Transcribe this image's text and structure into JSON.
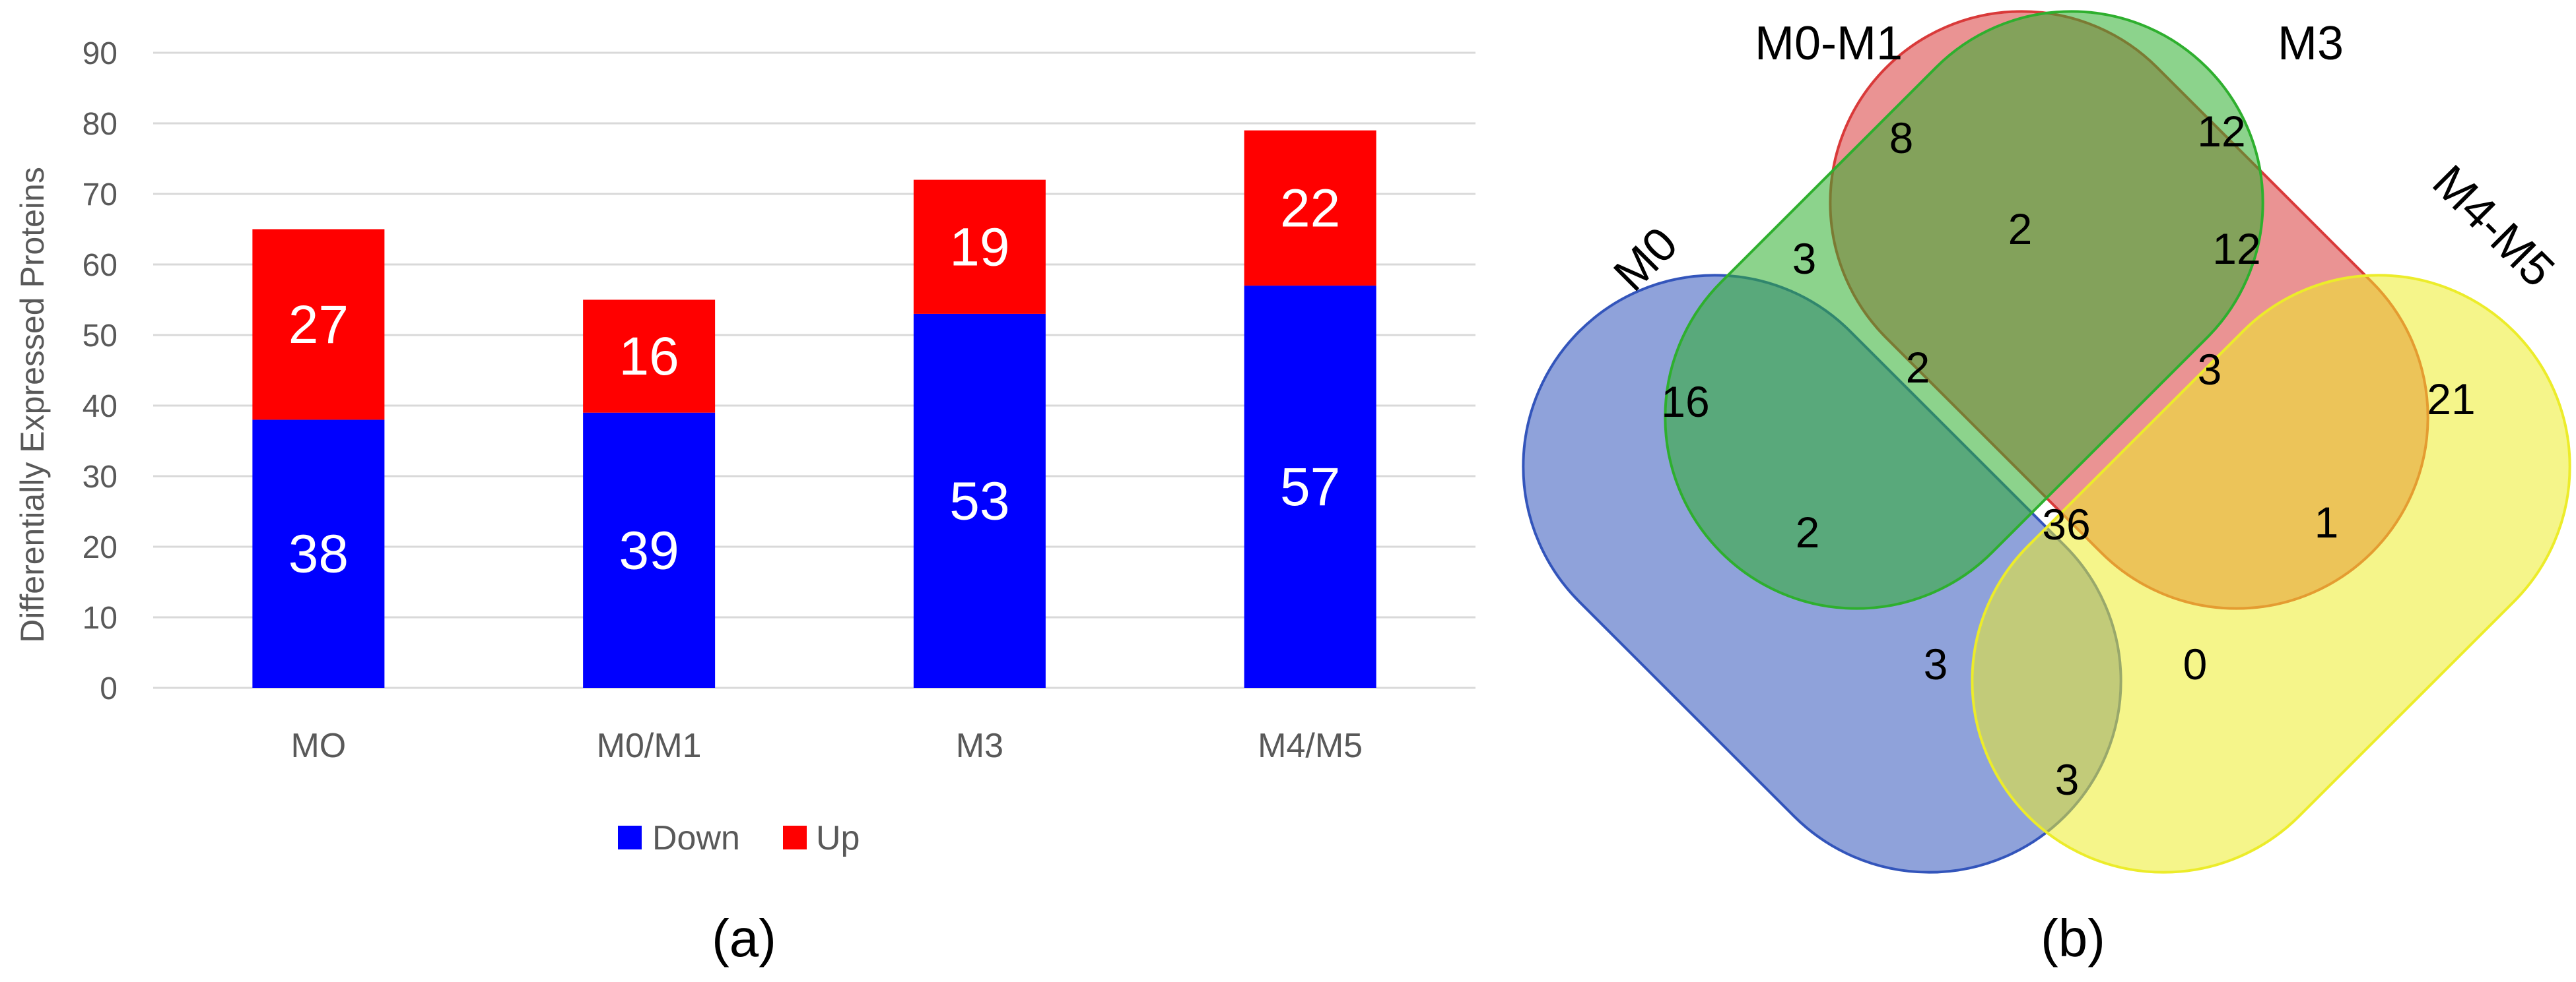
{
  "chart_data": [
    {
      "type": "bar",
      "stacked": true,
      "categories": [
        "MO",
        "M0/M1",
        "M3",
        "M4/M5"
      ],
      "series": [
        {
          "name": "Down",
          "values": [
            38,
            39,
            53,
            57
          ]
        },
        {
          "name": "Up",
          "values": [
            27,
            16,
            19,
            22
          ]
        }
      ],
      "ylabel": "Differentially Expressed Proteins",
      "ylim": [
        0,
        90
      ],
      "yticks": [
        "0",
        "10",
        "20",
        "30",
        "40",
        "50",
        "60",
        "70",
        "80",
        "90"
      ],
      "grid": true,
      "legend": "bottom",
      "panel_label": "(a)"
    },
    {
      "type": "venn",
      "sets": [
        "M0",
        "M0-M1",
        "M3",
        "M4-M5"
      ],
      "regions": {
        "M0": 16,
        "M0-M1": 8,
        "M3": 12,
        "M4-M5": 21,
        "M0&M0-M1": 3,
        "M0-M1&M3": 2,
        "M3&M4-M5": 12,
        "M0&M3": 2,
        "M0-M1&M4-M5": 1,
        "M0&M4-M5": 3,
        "M0&M0-M1&M3": 2,
        "M0-M1&M3&M4-M5": 3,
        "M0&M3&M4-M5": 3,
        "M0&M0-M1&M4-M5": 0,
        "M0&M0-M1&M3&M4-M5": 36
      },
      "panel_label": "(b)"
    }
  ],
  "colors": {
    "down": "#0000ff",
    "up": "#ff0000",
    "grid": "#d9d9d9",
    "venn_m0": "#3355bb",
    "venn_m0m1": "#d93a3a",
    "venn_m3": "#2eaf2e",
    "venn_m4m5": "#ecec2a"
  }
}
